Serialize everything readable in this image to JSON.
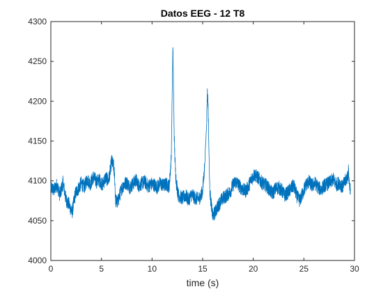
{
  "chart_data": {
    "type": "line",
    "title": "Datos EEG - 12 T8",
    "xlabel": "time (s)",
    "ylabel": "",
    "xlim": [
      0,
      30
    ],
    "ylim": [
      4000,
      4300
    ],
    "xticks": [
      0,
      5,
      10,
      15,
      20,
      25,
      30
    ],
    "yticks": [
      4000,
      4050,
      4100,
      4150,
      4200,
      4250,
      4300
    ],
    "grid": false,
    "legend": "none",
    "series": [
      {
        "color": "#0072BD",
        "x": [
          0,
          0.3,
          0.6,
          0.9,
          1.2,
          1.5,
          1.8,
          2.1,
          2.4,
          2.7,
          3.0,
          3.3,
          3.6,
          3.9,
          4.2,
          4.5,
          4.8,
          5.1,
          5.4,
          5.7,
          5.9,
          6.0,
          6.1,
          6.2,
          6.3,
          6.4,
          6.6,
          6.8,
          7.0,
          7.2,
          7.5,
          7.8,
          8.1,
          8.4,
          8.7,
          9.0,
          9.3,
          9.6,
          9.9,
          10.2,
          10.5,
          10.8,
          11.1,
          11.4,
          11.7,
          11.9,
          12.0,
          12.05,
          12.1,
          12.15,
          12.2,
          12.3,
          12.4,
          12.5,
          12.6,
          12.8,
          13.0,
          13.3,
          13.6,
          13.9,
          14.2,
          14.5,
          14.8,
          15.0,
          15.2,
          15.4,
          15.45,
          15.5,
          15.55,
          15.6,
          15.7,
          15.8,
          15.9,
          16.0,
          16.2,
          16.5,
          16.8,
          17.1,
          17.4,
          17.7,
          18.0,
          18.3,
          18.6,
          18.9,
          19.2,
          19.5,
          19.8,
          20.1,
          20.4,
          20.7,
          21.0,
          21.3,
          21.6,
          21.9,
          22.2,
          22.5,
          22.8,
          23.1,
          23.4,
          23.7,
          24.0,
          24.3,
          24.6,
          24.9,
          25.2,
          25.5,
          25.8,
          26.1,
          26.4,
          26.7,
          27.0,
          27.3,
          27.6,
          27.9,
          28.2,
          28.5,
          28.8,
          29.1,
          29.3,
          29.4,
          29.5,
          29.6
        ],
        "y": [
          4092,
          4088,
          4095,
          4082,
          4098,
          4076,
          4070,
          4060,
          4083,
          4090,
          4097,
          4092,
          4102,
          4096,
          4105,
          4099,
          4101,
          4095,
          4104,
          4100,
          4115,
          4125,
          4122,
          4118,
          4105,
          4075,
          4073,
          4082,
          4090,
          4095,
          4098,
          4092,
          4096,
          4101,
          4094,
          4097,
          4099,
          4093,
          4096,
          4095,
          4092,
          4097,
          4094,
          4096,
          4093,
          4130,
          4220,
          4265,
          4240,
          4190,
          4150,
          4115,
          4098,
          4090,
          4082,
          4080,
          4078,
          4082,
          4076,
          4083,
          4079,
          4077,
          4080,
          4088,
          4120,
          4175,
          4210,
          4205,
          4190,
          4150,
          4090,
          4075,
          4065,
          4055,
          4060,
          4068,
          4075,
          4079,
          4082,
          4086,
          4095,
          4099,
          4094,
          4090,
          4087,
          4092,
          4102,
          4108,
          4105,
          4100,
          4096,
          4094,
          4089,
          4084,
          4090,
          4092,
          4088,
          4082,
          4085,
          4090,
          4094,
          4081,
          4075,
          4085,
          4095,
          4099,
          4094,
          4097,
          4092,
          4089,
          4094,
          4096,
          4098,
          4102,
          4095,
          4098,
          4092,
          4100,
          4105,
          4112,
          4095,
          4090
        ]
      }
    ]
  }
}
